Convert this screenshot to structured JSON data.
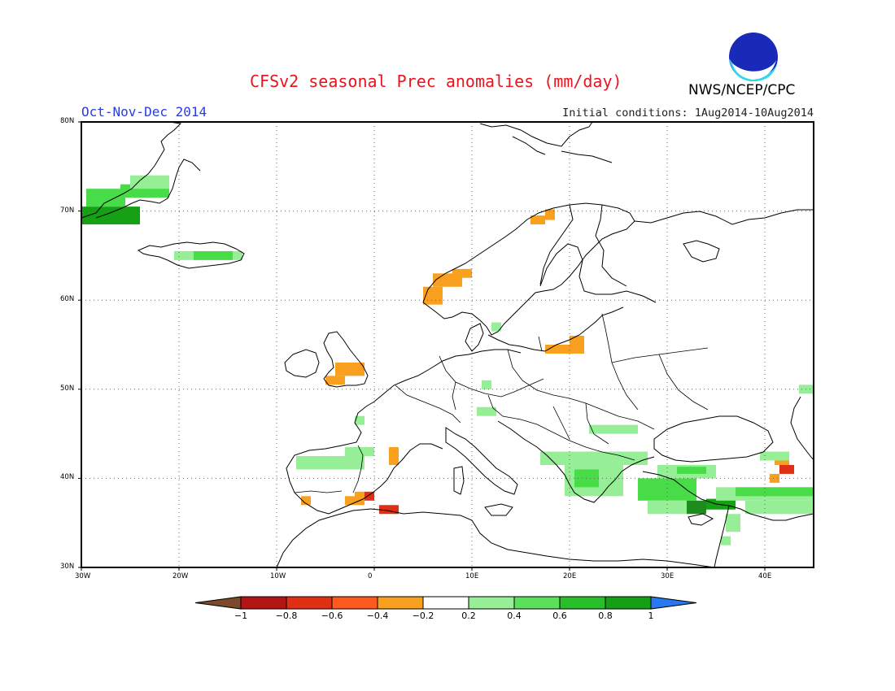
{
  "header": {
    "title": "CFSv2 seasonal Prec anomalies (mm/day)",
    "period": "Oct-Nov-Dec 2014",
    "initial_conditions": "Initial conditions: 1Aug2014-10Aug2014",
    "agency": "NWS/NCEP/CPC",
    "logo_text": "NOAA"
  },
  "map": {
    "projection": "latlon",
    "lon_range": [
      -30,
      45
    ],
    "lat_range": [
      30,
      80
    ],
    "lon_ticks": [
      {
        "value": -30,
        "label": "30W"
      },
      {
        "value": -20,
        "label": "20W"
      },
      {
        "value": -10,
        "label": "10W"
      },
      {
        "value": 0,
        "label": "0"
      },
      {
        "value": 10,
        "label": "10E"
      },
      {
        "value": 20,
        "label": "20E"
      },
      {
        "value": 30,
        "label": "30E"
      },
      {
        "value": 40,
        "label": "40E"
      }
    ],
    "lat_ticks": [
      {
        "value": 30,
        "label": "30N"
      },
      {
        "value": 40,
        "label": "40N"
      },
      {
        "value": 50,
        "label": "50N"
      },
      {
        "value": 60,
        "label": "60N"
      },
      {
        "value": 70,
        "label": "70N"
      },
      {
        "value": 80,
        "label": "80N"
      }
    ],
    "grid": true,
    "anomaly_cells": [
      {
        "lon": -30,
        "lat": 68.5,
        "w": 6,
        "h": 2,
        "color": "#15a015"
      },
      {
        "lon": -29.5,
        "lat": 70.5,
        "w": 4,
        "h": 2,
        "color": "#48dc48"
      },
      {
        "lon": -26,
        "lat": 71.5,
        "w": 5,
        "h": 1.5,
        "color": "#48dc48"
      },
      {
        "lon": -25,
        "lat": 72.5,
        "w": 4,
        "h": 1.5,
        "color": "#96ee96"
      },
      {
        "lon": -20.5,
        "lat": 64.5,
        "w": 2,
        "h": 1,
        "color": "#96ee96"
      },
      {
        "lon": -18.5,
        "lat": 64.5,
        "w": 4,
        "h": 1,
        "color": "#48dc48"
      },
      {
        "lon": -14.5,
        "lat": 64.5,
        "w": 1,
        "h": 1,
        "color": "#96ee96"
      },
      {
        "lon": 5,
        "lat": 59.5,
        "w": 2,
        "h": 2,
        "color": "#f9a01e"
      },
      {
        "lon": 6,
        "lat": 61.5,
        "w": 3,
        "h": 1.5,
        "color": "#f9a01e"
      },
      {
        "lon": 8,
        "lat": 62.5,
        "w": 2,
        "h": 1,
        "color": "#f9a01e"
      },
      {
        "lon": 16,
        "lat": 68.5,
        "w": 1.5,
        "h": 1,
        "color": "#f9a01e"
      },
      {
        "lon": 17.5,
        "lat": 69,
        "w": 1,
        "h": 1.2,
        "color": "#f9a01e"
      },
      {
        "lon": 17.5,
        "lat": 54,
        "w": 4,
        "h": 1,
        "color": "#f9a01e"
      },
      {
        "lon": 20,
        "lat": 55,
        "w": 1.5,
        "h": 1,
        "color": "#f9a01e"
      },
      {
        "lon": -5,
        "lat": 50.5,
        "w": 2,
        "h": 1,
        "color": "#f9a01e"
      },
      {
        "lon": -4,
        "lat": 51.5,
        "w": 3,
        "h": 1.5,
        "color": "#f9a01e"
      },
      {
        "lon": 1.5,
        "lat": 41.5,
        "w": 1,
        "h": 2,
        "color": "#f9a01e"
      },
      {
        "lon": -3,
        "lat": 37,
        "w": 2,
        "h": 1,
        "color": "#f9a01e"
      },
      {
        "lon": -2,
        "lat": 37.5,
        "w": 1,
        "h": 1,
        "color": "#f9a01e"
      },
      {
        "lon": -1,
        "lat": 37.5,
        "w": 1,
        "h": 1,
        "color": "#e03014"
      },
      {
        "lon": 0.5,
        "lat": 36,
        "w": 2,
        "h": 1,
        "color": "#e03014"
      },
      {
        "lon": -7.5,
        "lat": 37,
        "w": 1,
        "h": 1,
        "color": "#f9a01e"
      },
      {
        "lon": 41,
        "lat": 41.5,
        "w": 1.5,
        "h": 1,
        "color": "#f9a01e"
      },
      {
        "lon": 41.5,
        "lat": 40.5,
        "w": 1.5,
        "h": 1,
        "color": "#e03014"
      },
      {
        "lon": 40.5,
        "lat": 39.5,
        "w": 1,
        "h": 1,
        "color": "#f9a01e"
      },
      {
        "lon": -8,
        "lat": 41,
        "w": 7,
        "h": 1.5,
        "color": "#96ee96"
      },
      {
        "lon": -3,
        "lat": 42.5,
        "w": 3,
        "h": 1,
        "color": "#96ee96"
      },
      {
        "lon": -2,
        "lat": 46,
        "w": 1,
        "h": 1,
        "color": "#96ee96"
      },
      {
        "lon": 11,
        "lat": 50,
        "w": 1,
        "h": 1,
        "color": "#96ee96"
      },
      {
        "lon": 10.5,
        "lat": 47,
        "w": 2,
        "h": 1,
        "color": "#96ee96"
      },
      {
        "lon": 12,
        "lat": 56.5,
        "w": 1,
        "h": 1,
        "color": "#96ee96"
      },
      {
        "lon": 22,
        "lat": 45,
        "w": 5,
        "h": 1,
        "color": "#96ee96"
      },
      {
        "lon": 17,
        "lat": 41.5,
        "w": 11,
        "h": 1.5,
        "color": "#96ee96"
      },
      {
        "lon": 19.5,
        "lat": 38,
        "w": 6,
        "h": 3.5,
        "color": "#96ee96"
      },
      {
        "lon": 20.5,
        "lat": 39,
        "w": 2.5,
        "h": 2,
        "color": "#48dc48"
      },
      {
        "lon": 27,
        "lat": 37.5,
        "w": 6,
        "h": 2.5,
        "color": "#48dc48"
      },
      {
        "lon": 29,
        "lat": 40,
        "w": 6,
        "h": 1.5,
        "color": "#96ee96"
      },
      {
        "lon": 31,
        "lat": 40.5,
        "w": 3,
        "h": 0.8,
        "color": "#48dc48"
      },
      {
        "lon": 28,
        "lat": 36,
        "w": 4,
        "h": 1.5,
        "color": "#96ee96"
      },
      {
        "lon": 32,
        "lat": 36,
        "w": 2,
        "h": 1.5,
        "color": "#1c8c1c"
      },
      {
        "lon": 34,
        "lat": 36.5,
        "w": 3,
        "h": 1.2,
        "color": "#15a015"
      },
      {
        "lon": 35,
        "lat": 37.5,
        "w": 10,
        "h": 1.5,
        "color": "#96ee96"
      },
      {
        "lon": 37,
        "lat": 38,
        "w": 8,
        "h": 1,
        "color": "#48dc48"
      },
      {
        "lon": 38,
        "lat": 36,
        "w": 7,
        "h": 1.5,
        "color": "#96ee96"
      },
      {
        "lon": 36,
        "lat": 34,
        "w": 1.5,
        "h": 2,
        "color": "#96ee96"
      },
      {
        "lon": 35.5,
        "lat": 32.5,
        "w": 1,
        "h": 1,
        "color": "#96ee96"
      },
      {
        "lon": 39.5,
        "lat": 42,
        "w": 3,
        "h": 1,
        "color": "#96ee96"
      },
      {
        "lon": 43.5,
        "lat": 49.5,
        "w": 1.5,
        "h": 1,
        "color": "#96ee96"
      }
    ]
  },
  "legend": {
    "colors": [
      "#7a4a2a",
      "#b41414",
      "#e03014",
      "#ff5a1e",
      "#f9a01e",
      "#ffffff",
      "#96ee96",
      "#5ae05a",
      "#28c028",
      "#14a014",
      "#2878f0"
    ],
    "labels": [
      "−1",
      "−0.8",
      "−0.6",
      "−0.4",
      "−0.2",
      "0.2",
      "0.4",
      "0.6",
      "0.8",
      "1"
    ]
  }
}
